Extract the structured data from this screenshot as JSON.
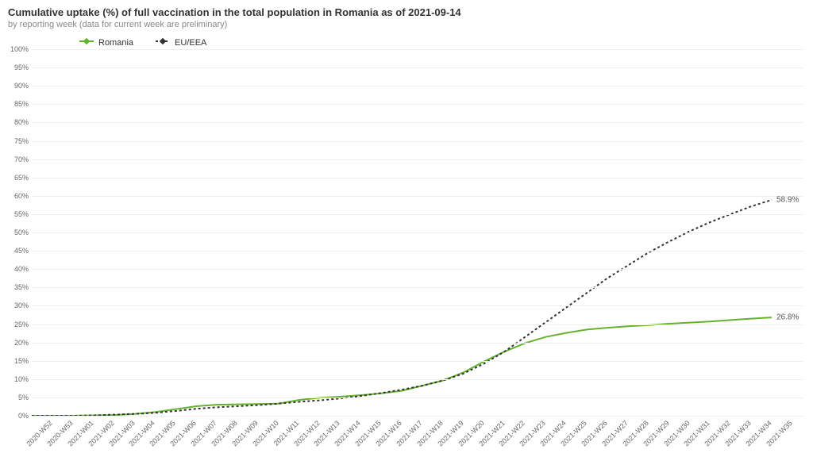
{
  "title": "Cumulative uptake (%) of full vaccination in the total population in Romania as of 2021-09-14",
  "subtitle": "by reporting week (data for current week are preliminary)",
  "chart": {
    "type": "line",
    "background_color": "#ffffff",
    "grid_color": "#eeeeee",
    "title_fontsize": 13,
    "label_fontsize": 9,
    "ylim": [
      0,
      100
    ],
    "ytick_step": 5,
    "x_categories": [
      "2020-W52",
      "2020-W53",
      "2021-W01",
      "2021-W02",
      "2021-W03",
      "2021-W04",
      "2021-W05",
      "2021-W06",
      "2021-W07",
      "2021-W08",
      "2021-W09",
      "2021-W10",
      "2021-W11",
      "2021-W12",
      "2021-W13",
      "2021-W14",
      "2021-W15",
      "2021-W16",
      "2021-W17",
      "2021-W18",
      "2021-W19",
      "2021-W20",
      "2021-W21",
      "2021-W22",
      "2021-W23",
      "2021-W24",
      "2021-W25",
      "2021-W26",
      "2021-W27",
      "2021-W28",
      "2021-W29",
      "2021-W30",
      "2021-W31",
      "2021-W32",
      "2021-W33",
      "2021-W34",
      "2021-W35"
    ],
    "series": [
      {
        "name": "Romania",
        "color": "#65b22e",
        "line_width": 2,
        "dash": "solid",
        "marker": "diamond",
        "end_label": "26.8%",
        "values": [
          0,
          0,
          0,
          0.1,
          0.2,
          0.5,
          1.0,
          1.8,
          2.6,
          3.0,
          3.1,
          3.2,
          3.3,
          4.3,
          4.9,
          5.2,
          5.6,
          6.1,
          6.8,
          8.2,
          9.6,
          11.8,
          14.8,
          17.5,
          19.8,
          21.5,
          22.6,
          23.5,
          24.0,
          24.4,
          24.7,
          25.1,
          25.4,
          25.7,
          26.1,
          26.5,
          26.8
        ]
      },
      {
        "name": "EU/EEA",
        "color": "#333333",
        "line_width": 2,
        "dash": "3,3",
        "marker": "diamond",
        "end_label": "58.9%",
        "values": [
          0,
          0,
          0,
          0.1,
          0.3,
          0.5,
          0.8,
          1.3,
          1.9,
          2.3,
          2.6,
          2.9,
          3.3,
          3.8,
          4.2,
          4.7,
          5.4,
          6.2,
          7.1,
          8.2,
          9.6,
          11.5,
          14.2,
          17.5,
          21.5,
          25.5,
          29.5,
          33.5,
          37.5,
          41.0,
          44.5,
          47.5,
          50.3,
          52.8,
          55.0,
          57.1,
          58.9
        ]
      }
    ]
  }
}
